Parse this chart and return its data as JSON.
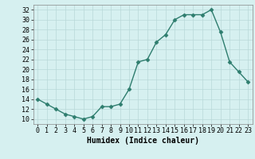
{
  "x": [
    0,
    1,
    2,
    3,
    4,
    5,
    6,
    7,
    8,
    9,
    10,
    11,
    12,
    13,
    14,
    15,
    16,
    17,
    18,
    19,
    20,
    21,
    22,
    23
  ],
  "y": [
    14,
    13,
    12,
    11,
    10.5,
    10,
    10.5,
    12.5,
    12.5,
    13,
    16,
    21.5,
    22,
    25.5,
    27,
    30,
    31,
    31,
    31,
    32,
    27.5,
    21.5,
    19.5,
    17.5
  ],
  "line_color": "#2e7d6e",
  "marker": "D",
  "marker_size": 2.5,
  "bg_color": "#d6f0f0",
  "grid_color": "#b8d8d8",
  "xlabel": "Humidex (Indice chaleur)",
  "xlim": [
    -0.5,
    23.5
  ],
  "ylim": [
    9,
    33
  ],
  "yticks": [
    10,
    12,
    14,
    16,
    18,
    20,
    22,
    24,
    26,
    28,
    30,
    32
  ],
  "xticks": [
    0,
    1,
    2,
    3,
    4,
    5,
    6,
    7,
    8,
    9,
    10,
    11,
    12,
    13,
    14,
    15,
    16,
    17,
    18,
    19,
    20,
    21,
    22,
    23
  ],
  "xlabel_fontsize": 7,
  "tick_fontsize": 6,
  "line_width": 1.0
}
